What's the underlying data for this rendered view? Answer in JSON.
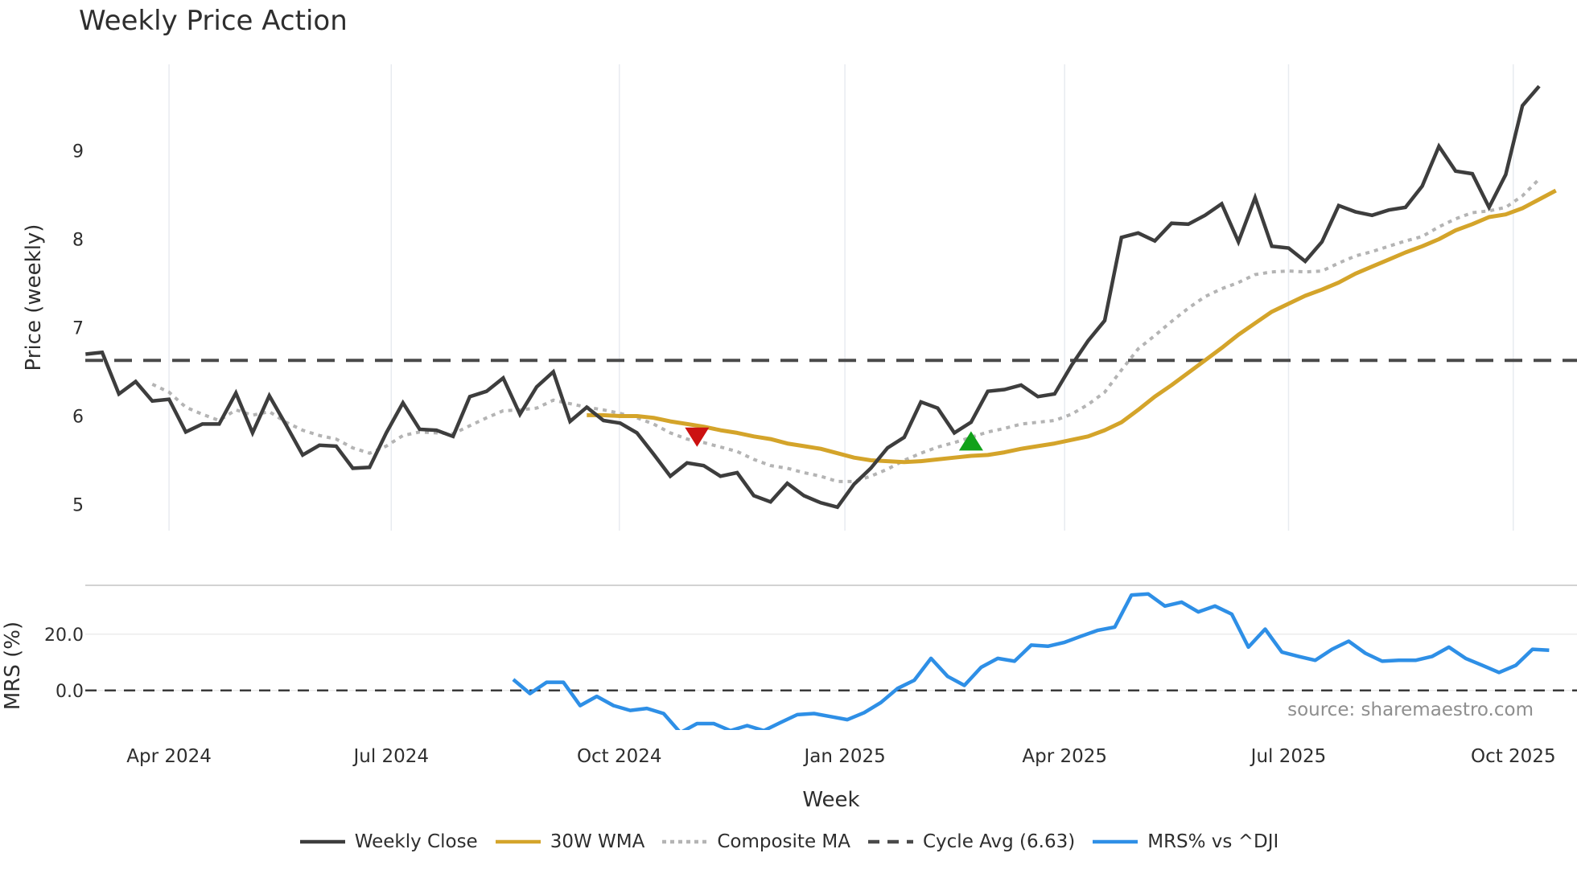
{
  "title": "Weekly Price Action",
  "source_note": "source: sharemaestro.com",
  "colors": {
    "close": "#3d3d3d",
    "wma": "#d4a42a",
    "composite": "#b4b4b4",
    "cycle": "#4a4a4a",
    "mrs": "#2e8fe6",
    "sell_marker": "#cc1111",
    "buy_marker": "#11a11a",
    "grid": "#e8ebf0"
  },
  "legend": [
    {
      "key": "close",
      "label": "Weekly Close",
      "style": "solid"
    },
    {
      "key": "wma",
      "label": "30W WMA",
      "style": "solid"
    },
    {
      "key": "composite",
      "label": "Composite MA",
      "style": "dotted"
    },
    {
      "key": "cycle",
      "label": "Cycle Avg (6.63)",
      "style": "dashed"
    },
    {
      "key": "mrs",
      "label": "MRS% vs ^DJI",
      "style": "solid"
    }
  ],
  "chart_data": [
    {
      "type": "line",
      "title": "Weekly Price Action",
      "xlabel": "Week",
      "ylabel": "Price (weekly)",
      "ylim": [
        4.7,
        9.9
      ],
      "yticks": [
        5,
        6,
        7,
        8,
        9
      ],
      "xticks": [
        {
          "label": "Apr 2024",
          "index": 5
        },
        {
          "label": "Jul 2024",
          "index": 18.3
        },
        {
          "label": "Oct 2024",
          "index": 31.95
        },
        {
          "label": "Jan 2025",
          "index": 45.45
        },
        {
          "label": "Apr 2025",
          "index": 58.6
        },
        {
          "label": "Jul 2025",
          "index": 72.0
        },
        {
          "label": "Oct 2025",
          "index": 85.45
        }
      ],
      "grid": "vertical",
      "series": [
        {
          "name": "Weekly Close",
          "start_index": 0,
          "values": [
            6.7,
            6.72,
            6.25,
            6.39,
            6.17,
            6.19,
            5.82,
            5.91,
            5.91,
            6.26,
            5.81,
            6.23,
            5.9,
            5.56,
            5.67,
            5.66,
            5.41,
            5.42,
            5.81,
            6.15,
            5.85,
            5.84,
            5.77,
            6.22,
            6.28,
            6.43,
            6.02,
            6.33,
            6.5,
            5.94,
            6.1,
            5.95,
            5.92,
            5.81,
            5.57,
            5.32,
            5.47,
            5.44,
            5.32,
            5.36,
            5.1,
            5.03,
            5.24,
            5.1,
            5.02,
            4.97,
            5.23,
            5.41,
            5.64,
            5.76,
            6.16,
            6.09,
            5.81,
            5.93,
            6.28,
            6.3,
            6.35,
            6.22,
            6.25,
            6.57,
            6.85,
            7.08,
            8.02,
            8.07,
            7.98,
            8.18,
            8.17,
            8.27,
            8.4,
            7.97,
            8.47,
            7.92,
            7.9,
            7.75,
            7.97,
            8.38,
            8.31,
            8.27,
            8.33,
            8.36,
            8.6,
            9.05,
            8.77,
            8.74,
            8.36,
            8.73,
            9.51,
            9.73
          ]
        },
        {
          "name": "30W WMA",
          "start_index": 30,
          "values": [
            6.01,
            6.01,
            6.0,
            6.0,
            5.98,
            5.94,
            5.91,
            5.88,
            5.84,
            5.81,
            5.77,
            5.74,
            5.69,
            5.66,
            5.63,
            5.58,
            5.53,
            5.5,
            5.49,
            5.48,
            5.49,
            5.51,
            5.53,
            5.55,
            5.56,
            5.59,
            5.63,
            5.66,
            5.69,
            5.73,
            5.77,
            5.84,
            5.93,
            6.07,
            6.22,
            6.35,
            6.49,
            6.63,
            6.77,
            6.92,
            7.05,
            7.18,
            7.27,
            7.36,
            7.43,
            7.51,
            7.61,
            7.69,
            7.77,
            7.85,
            7.92,
            8.0,
            8.1,
            8.17,
            8.25,
            8.28,
            8.35,
            8.45,
            8.55
          ]
        },
        {
          "name": "Composite MA",
          "start_index": 4,
          "values": [
            6.36,
            6.27,
            6.1,
            6.02,
            5.95,
            6.07,
            6.01,
            6.05,
            5.93,
            5.84,
            5.78,
            5.74,
            5.64,
            5.58,
            5.66,
            5.78,
            5.82,
            5.81,
            5.8,
            5.89,
            5.98,
            6.06,
            6.07,
            6.09,
            6.18,
            6.14,
            6.1,
            6.07,
            6.03,
            5.98,
            5.91,
            5.81,
            5.74,
            5.7,
            5.65,
            5.6,
            5.51,
            5.44,
            5.41,
            5.36,
            5.32,
            5.26,
            5.26,
            5.32,
            5.4,
            5.5,
            5.58,
            5.65,
            5.7,
            5.76,
            5.82,
            5.86,
            5.91,
            5.93,
            5.95,
            6.02,
            6.13,
            6.27,
            6.52,
            6.76,
            6.91,
            7.07,
            7.22,
            7.35,
            7.44,
            7.51,
            7.6,
            7.63,
            7.64,
            7.63,
            7.64,
            7.73,
            7.81,
            7.86,
            7.92,
            7.98,
            8.03,
            8.14,
            8.23,
            8.3,
            8.32,
            8.36,
            8.49,
            8.68
          ]
        },
        {
          "name": "Cycle Avg (6.63)",
          "constant": 6.63
        }
      ],
      "markers": [
        {
          "type": "sell",
          "shape": "triangle-down",
          "index": 36.6,
          "value": 5.77
        },
        {
          "type": "buy",
          "shape": "triangle-up",
          "index": 53,
          "value": 5.71
        }
      ]
    },
    {
      "type": "line",
      "title": "",
      "xlabel": "Week",
      "ylabel": "MRS (%)",
      "ylim": [
        -20,
        39
      ],
      "yticks": [
        0.0,
        20.0
      ],
      "ytick_labels": [
        "0.0",
        "20.0"
      ],
      "series": [
        {
          "name": "MRS% vs ^DJI",
          "start_index": 25.6,
          "values": [
            3.9,
            -1.1,
            2.9,
            2.9,
            -5.4,
            -2.1,
            -5.4,
            -7.1,
            -6.4,
            -8.2,
            -15.0,
            -11.8,
            -11.8,
            -14.3,
            -12.5,
            -14.3,
            -11.4,
            -8.6,
            -8.2,
            -9.3,
            -10.4,
            -7.9,
            -4.3,
            0.7,
            3.6,
            11.4,
            5.0,
            1.8,
            8.2,
            11.4,
            10.4,
            16.1,
            15.7,
            17.1,
            19.3,
            21.4,
            22.5,
            33.9,
            34.3,
            30.0,
            31.4,
            27.9,
            30.0,
            27.1,
            15.4,
            21.8,
            13.6,
            12.1,
            10.7,
            14.6,
            17.5,
            13.2,
            10.4,
            10.7,
            10.7,
            12.1,
            15.4,
            11.4,
            8.9,
            6.4,
            8.9,
            14.6,
            14.3
          ]
        },
        {
          "name": "Zero line",
          "constant": 0
        }
      ]
    }
  ]
}
